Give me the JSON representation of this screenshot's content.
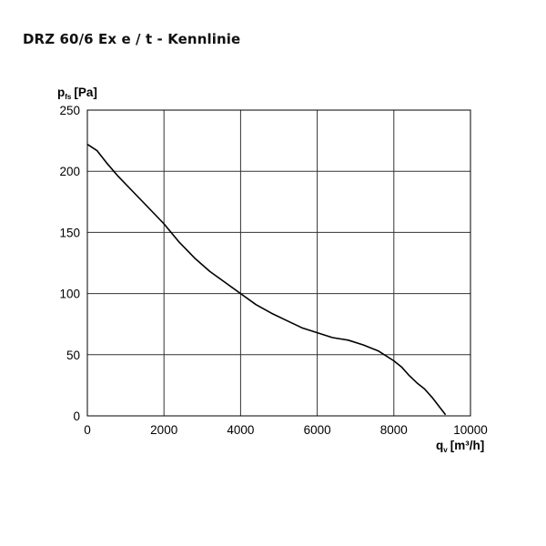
{
  "title": "DRZ 60/6 Ex e / t - Kennlinie",
  "chart_data": {
    "type": "line",
    "title": "DRZ 60/6 Ex e / t - Kennlinie",
    "ylabel": {
      "main": "p",
      "sub": "fs",
      "unit": "[Pa]"
    },
    "xlabel": {
      "main": "q",
      "sub": "v",
      "unit": "[m³/h]"
    },
    "xlim": [
      0,
      10000
    ],
    "ylim": [
      0,
      250
    ],
    "xticks": [
      0,
      2000,
      4000,
      6000,
      8000,
      10000
    ],
    "yticks": [
      0,
      50,
      100,
      150,
      200,
      250
    ],
    "xtick_labels": [
      "0",
      "2000",
      "4000",
      "6000",
      "8000",
      "10000"
    ],
    "ytick_labels": [
      "0",
      "50",
      "100",
      "150",
      "200",
      "250"
    ],
    "grid": true,
    "series": [
      {
        "color": "#000000",
        "x": [
          0,
          250,
          500,
          800,
          1200,
          1600,
          2000,
          2400,
          2800,
          3200,
          3600,
          4000,
          4400,
          4800,
          5200,
          5600,
          6000,
          6400,
          6800,
          7200,
          7600,
          8000,
          8200,
          8400,
          8600,
          8800,
          9000,
          9200,
          9350
        ],
        "y": [
          222,
          217,
          207,
          196,
          183,
          170,
          157,
          142,
          129,
          118,
          109,
          100,
          91,
          84,
          78,
          72,
          68,
          64,
          62,
          58,
          53,
          45,
          40,
          33,
          27,
          22,
          15,
          7,
          1
        ]
      }
    ]
  }
}
